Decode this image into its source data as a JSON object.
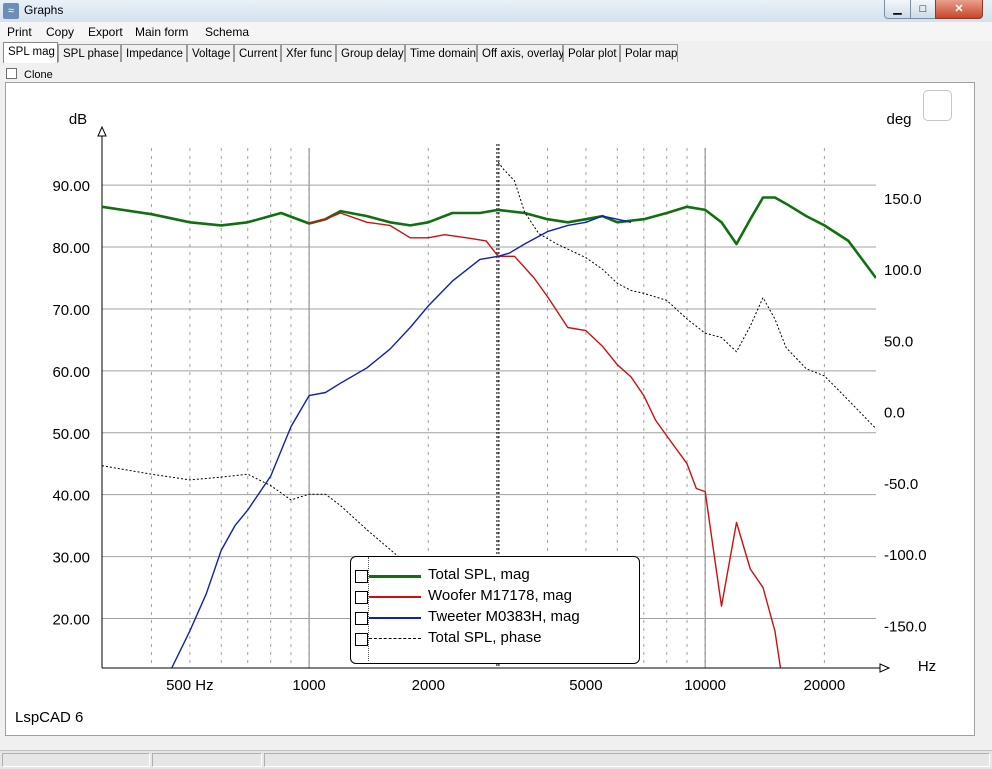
{
  "window": {
    "title": "Graphs",
    "min_glyph": "▁",
    "max_glyph": "□",
    "close_glyph": "✕"
  },
  "menu": [
    "Print",
    "Copy",
    "Export",
    "Main form",
    "Schema"
  ],
  "tabs": [
    "SPL mag",
    "SPL phase",
    "Impedance",
    "Voltage",
    "Current",
    "Xfer func",
    "Group delay",
    "Time domain",
    "Off axis, overlay",
    "Polar plot",
    "Polar map"
  ],
  "active_tab": "SPL mag",
  "clone_label": "Clone",
  "brand": "LspCAD 6",
  "colors": {
    "total": "#107010",
    "woofer": "#cc1010",
    "tweeter": "#1020b0",
    "phase": "#000000",
    "grid": "#a0a0a0"
  },
  "chart_data": {
    "type": "line",
    "x_scale": "log",
    "xlim": [
      300,
      27000
    ],
    "ylim": [
      12,
      96
    ],
    "y2lim": [
      -180,
      185
    ],
    "ylabel": "dB",
    "y2label": "deg",
    "xlabel": "Hz",
    "x_ticks": [
      500,
      1000,
      2000,
      5000,
      10000,
      20000
    ],
    "x_tick_labels": [
      "500 Hz",
      "1000",
      "2000",
      "5000",
      "10000",
      "20000"
    ],
    "y_ticks": [
      90,
      80,
      70,
      60,
      50,
      40,
      30,
      20
    ],
    "y_tick_labels": [
      "90.00",
      "80.00",
      "70.00",
      "60.00",
      "50.00",
      "40.00",
      "30.00",
      "20.00"
    ],
    "y2_ticks": [
      150,
      100,
      50,
      0,
      -50,
      -100,
      -150
    ],
    "y2_tick_labels": [
      "150.0",
      "100.0",
      "50.0",
      "0.0",
      "-50.0",
      "-100.0",
      "-150.0"
    ],
    "cursor_x": 2980,
    "grid": true,
    "legend_position": "bottom-center",
    "series": [
      {
        "name": "Total SPL, mag",
        "axis": "left",
        "style": "thick",
        "x": [
          300,
          400,
          500,
          600,
          700,
          850,
          1000,
          1100,
          1200,
          1400,
          1600,
          1800,
          2000,
          2300,
          2700,
          3000,
          3500,
          4000,
          4500,
          5000,
          5500,
          6000,
          7000,
          8000,
          9000,
          10000,
          11000,
          12000,
          13000,
          14000,
          15000,
          16000,
          18000,
          20000,
          23000,
          27000
        ],
        "y": [
          86.5,
          85.3,
          84.0,
          83.5,
          84.0,
          85.5,
          83.8,
          84.5,
          85.8,
          85.0,
          84.0,
          83.5,
          84.0,
          85.5,
          85.5,
          86.0,
          85.5,
          84.5,
          84.0,
          84.5,
          85.0,
          84.0,
          84.5,
          85.5,
          86.5,
          86.0,
          84.0,
          80.5,
          84.5,
          88.0,
          88.0,
          87.0,
          85.0,
          83.5,
          81.0,
          75.0
        ]
      },
      {
        "name": "Woofer M17178, mag",
        "axis": "left",
        "style": "normal",
        "x": [
          1000,
          1100,
          1200,
          1400,
          1600,
          1800,
          2000,
          2200,
          2500,
          2800,
          3000,
          3300,
          3700,
          4000,
          4500,
          5000,
          5500,
          6000,
          6500,
          7000,
          7500,
          8000,
          9000,
          9500,
          10000,
          10500,
          11000,
          12000,
          13000,
          14000,
          15000,
          15500
        ],
        "y": [
          83.8,
          84.5,
          85.5,
          84.0,
          83.5,
          81.5,
          81.5,
          82.0,
          81.5,
          81.0,
          78.5,
          78.5,
          75.0,
          72.0,
          67.0,
          66.5,
          64.0,
          61.0,
          59.0,
          56.0,
          52.0,
          49.5,
          45.0,
          41.0,
          40.5,
          31.0,
          22.0,
          35.5,
          28.0,
          25.0,
          18.0,
          12.0
        ]
      },
      {
        "name": "Tweeter M0383H, mag",
        "axis": "left",
        "style": "normal",
        "x": [
          450,
          500,
          550,
          600,
          650,
          700,
          800,
          900,
          1000,
          1100,
          1200,
          1400,
          1600,
          1800,
          2000,
          2300,
          2700,
          3000,
          3200,
          3500,
          4000,
          4500,
          5000,
          5500,
          6000,
          6500
        ],
        "y": [
          12.0,
          18.0,
          24.0,
          31.0,
          35.0,
          37.5,
          43.0,
          51.0,
          56.0,
          56.5,
          58.0,
          60.5,
          63.5,
          67.0,
          70.5,
          74.5,
          78.0,
          78.5,
          79.0,
          80.5,
          82.5,
          83.5,
          84.0,
          85.0,
          84.5,
          84.0
        ]
      },
      {
        "name": "Total SPL, phase",
        "axis": "right",
        "style": "dashed",
        "x": [
          300,
          400,
          500,
          600,
          700,
          800,
          900,
          1000,
          1100,
          1200,
          1400,
          1700,
          2000,
          2200,
          2400,
          3000,
          3100,
          3300,
          3500,
          3800,
          4200,
          5000,
          5500,
          6000,
          6500,
          7000,
          8000,
          9000,
          10000,
          11000,
          12000,
          13000,
          14000,
          15000,
          16000,
          18000,
          20000,
          23000,
          27000
        ],
        "y": [
          -38,
          -44,
          -48,
          -46,
          -44,
          -52,
          -62,
          -58,
          -58,
          -66,
          -83,
          -103,
          -125,
          -134,
          -138,
          175,
          170,
          162,
          140,
          125,
          118,
          108,
          100,
          90,
          85,
          83,
          78,
          65,
          55,
          52,
          42,
          60,
          80,
          65,
          45,
          30,
          25,
          8,
          -12
        ]
      }
    ]
  }
}
